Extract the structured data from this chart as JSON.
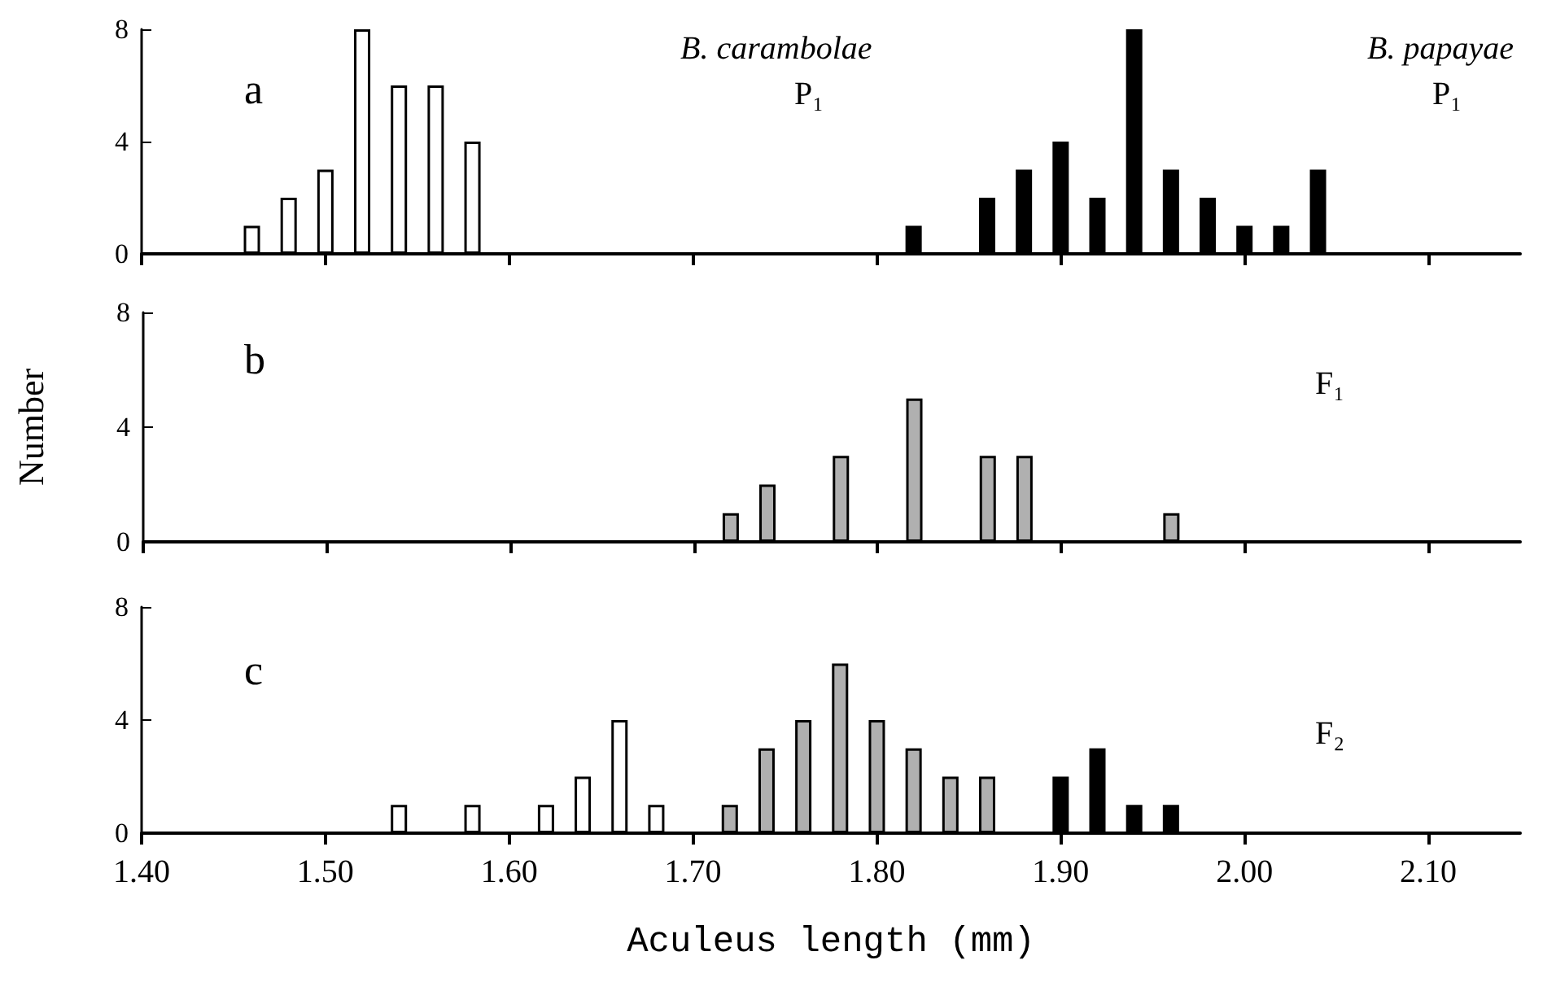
{
  "chart_data": [
    {
      "type": "bar",
      "annotations": [
        "a",
        "B. carambolae",
        "P₁",
        "B. papayae",
        "P₁"
      ],
      "ylim": [
        0,
        8
      ],
      "yticks": [
        0,
        4,
        8
      ],
      "xlim": [
        1.4,
        2.15
      ],
      "xticks": [
        {
          "value": 1.4,
          "label": null
        },
        {
          "value": 1.5,
          "label": null
        },
        {
          "value": 1.6,
          "label": null
        },
        {
          "value": 1.7,
          "label": null
        },
        {
          "value": 1.8,
          "label": null
        },
        {
          "value": 1.9,
          "label": null
        },
        {
          "value": 2.0,
          "label": null
        },
        {
          "value": 2.1,
          "label": null
        }
      ],
      "tick_labels": "y",
      "grid": false,
      "series": [
        {
          "color": "#ffffff",
          "x": [
            1.46,
            1.48,
            1.5,
            1.52,
            1.54,
            1.56,
            1.58
          ],
          "values": [
            1,
            2,
            3,
            8,
            6,
            6,
            4
          ]
        },
        {
          "color": "#000000",
          "x": [
            1.82,
            1.86,
            1.88,
            1.9,
            1.92,
            1.94,
            1.96,
            1.98,
            2.0,
            2.02,
            2.04
          ],
          "values": [
            1,
            2,
            3,
            4,
            2,
            8,
            3,
            2,
            1,
            1,
            3
          ]
        }
      ]
    },
    {
      "type": "bar",
      "ylabel": "Number",
      "annotations": [
        "b",
        "F₁"
      ],
      "ylim": [
        0,
        8
      ],
      "yticks": [
        0,
        4,
        8
      ],
      "xlim": [
        1.4,
        2.15
      ],
      "xticks": [
        {
          "value": 1.4,
          "label": null
        },
        {
          "value": 1.5,
          "label": null
        },
        {
          "value": 1.6,
          "label": null
        },
        {
          "value": 1.7,
          "label": null
        },
        {
          "value": 1.8,
          "label": null
        },
        {
          "value": 1.9,
          "label": null
        },
        {
          "value": 2.0,
          "label": null
        },
        {
          "value": 2.1,
          "label": null
        }
      ],
      "tick_labels": "y",
      "grid": false,
      "series": [
        {
          "color": "#b0b0b0",
          "x": [
            1.72,
            1.74,
            1.78,
            1.82,
            1.86,
            1.88,
            1.96
          ],
          "values": [
            1,
            2,
            3,
            5,
            3,
            3,
            1
          ]
        }
      ]
    },
    {
      "type": "bar",
      "xlabel": "Aculeus length (mm)",
      "annotations": [
        "c",
        "F₂"
      ],
      "ylim": [
        0,
        8
      ],
      "yticks": [
        0,
        4,
        8
      ],
      "xlim": [
        1.4,
        2.15
      ],
      "xticks": [
        {
          "value": 1.4,
          "label": "1.40"
        },
        {
          "value": 1.5,
          "label": "1.50"
        },
        {
          "value": 1.6,
          "label": "1.60"
        },
        {
          "value": 1.7,
          "label": "1.70"
        },
        {
          "value": 1.8,
          "label": "1.80"
        },
        {
          "value": 1.9,
          "label": "1.90"
        },
        {
          "value": 2.0,
          "label": "2.00"
        },
        {
          "value": 2.1,
          "label": "2.10"
        }
      ],
      "grid": false,
      "series": [
        {
          "color": "#ffffff",
          "x": [
            1.54,
            1.58,
            1.62,
            1.64,
            1.66,
            1.68
          ],
          "values": [
            1,
            1,
            1,
            2,
            4,
            1
          ]
        },
        {
          "color": "#b0b0b0",
          "x": [
            1.72,
            1.74,
            1.76,
            1.78,
            1.8,
            1.82,
            1.84,
            1.86
          ],
          "values": [
            1,
            3,
            4,
            6,
            4,
            3,
            2,
            2
          ]
        },
        {
          "color": "#000000",
          "x": [
            1.9,
            1.92,
            1.94,
            1.96
          ],
          "values": [
            2,
            3,
            1,
            1
          ]
        }
      ]
    }
  ]
}
